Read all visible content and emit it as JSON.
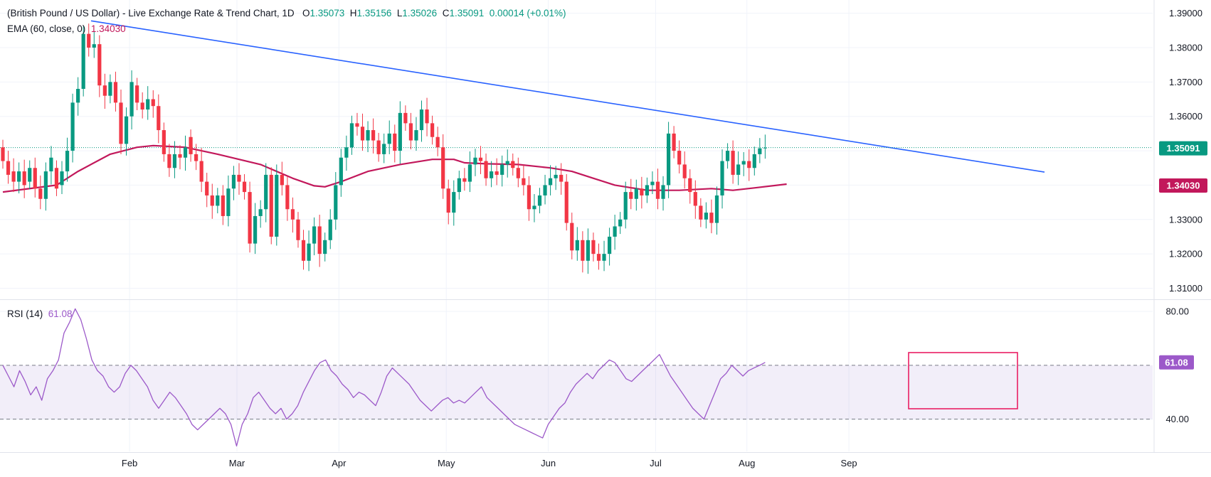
{
  "legend": {
    "symbol": "(British Pound / US Dollar) - Live Exchange Rate & Trend Chart, 1D",
    "o_label": "O",
    "o": "1.35073",
    "h_label": "H",
    "h": "1.35156",
    "l_label": "L",
    "l": "1.35026",
    "c_label": "C",
    "c": "1.35091",
    "change": "0.00014 (+0.01%)",
    "ema_label": "EMA (60, close, 0)",
    "ema_value": "1.34030",
    "rsi_label": "RSI (14)",
    "rsi_value": "61.08"
  },
  "price_tag": "1.35091",
  "ema_tag": "1.34030",
  "rsi_tag": "61.08",
  "colors": {
    "up": "#089981",
    "down": "#f23645",
    "ema": "#c2185b",
    "trendline": "#2962ff",
    "rsi": "#9c59c9",
    "highlight_box": "#e91e63"
  },
  "chart_data": [
    {
      "type": "candlestick",
      "title": "(British Pound / US Dollar) - Live Exchange Rate & Trend Chart, 1D",
      "x_ticks": [
        "Feb",
        "Mar",
        "Apr",
        "May",
        "Jun",
        "Jul",
        "Aug",
        "Sep"
      ],
      "y_ticks": [
        "1.31000",
        "1.32000",
        "1.33000",
        "1.34000",
        "1.35000",
        "1.36000",
        "1.37000",
        "1.38000",
        "1.39000"
      ],
      "ylim": [
        1.307,
        1.3922
      ],
      "candles": [
        [
          1.351,
          1.347
        ],
        [
          1.347,
          1.343
        ],
        [
          1.344,
          1.341
        ],
        [
          1.341,
          1.344
        ],
        [
          1.344,
          1.34
        ],
        [
          1.341,
          1.345
        ],
        [
          1.345,
          1.339
        ],
        [
          1.339,
          1.336
        ],
        [
          1.336,
          1.344
        ],
        [
          1.344,
          1.348
        ],
        [
          1.345,
          1.339
        ],
        [
          1.34,
          1.344
        ],
        [
          1.344,
          1.35
        ],
        [
          1.35,
          1.364
        ],
        [
          1.364,
          1.368
        ],
        [
          1.368,
          1.384
        ],
        [
          1.384,
          1.38
        ],
        [
          1.38,
          1.381
        ],
        [
          1.381,
          1.369
        ],
        [
          1.369,
          1.366
        ],
        [
          1.366,
          1.37
        ],
        [
          1.37,
          1.364
        ],
        [
          1.364,
          1.352
        ],
        [
          1.352,
          1.36
        ],
        [
          1.36,
          1.37
        ],
        [
          1.369,
          1.364
        ],
        [
          1.364,
          1.362
        ],
        [
          1.362,
          1.365
        ],
        [
          1.365,
          1.363
        ],
        [
          1.363,
          1.356
        ],
        [
          1.356,
          1.349
        ],
        [
          1.349,
          1.345
        ],
        [
          1.345,
          1.349
        ],
        [
          1.349,
          1.348
        ],
        [
          1.348,
          1.351
        ],
        [
          1.354,
          1.349
        ],
        [
          1.349,
          1.347
        ],
        [
          1.347,
          1.341
        ],
        [
          1.341,
          1.337
        ],
        [
          1.337,
          1.334
        ],
        [
          1.334,
          1.337
        ],
        [
          1.337,
          1.331
        ],
        [
          1.331,
          1.339
        ],
        [
          1.339,
          1.343
        ],
        [
          1.343,
          1.341
        ],
        [
          1.341,
          1.338
        ],
        [
          1.338,
          1.323
        ],
        [
          1.323,
          1.331
        ],
        [
          1.331,
          1.333
        ],
        [
          1.333,
          1.343
        ],
        [
          1.343,
          1.325
        ],
        [
          1.325,
          1.343
        ],
        [
          1.343,
          1.34
        ],
        [
          1.34,
          1.333
        ],
        [
          1.333,
          1.33
        ],
        [
          1.33,
          1.324
        ],
        [
          1.324,
          1.318
        ],
        [
          1.318,
          1.323
        ],
        [
          1.323,
          1.328
        ],
        [
          1.328,
          1.32
        ],
        [
          1.32,
          1.324
        ],
        [
          1.324,
          1.33
        ],
        [
          1.33,
          1.34
        ],
        [
          1.34,
          1.348
        ],
        [
          1.348,
          1.351
        ],
        [
          1.351,
          1.358
        ],
        [
          1.358,
          1.357
        ],
        [
          1.357,
          1.353
        ],
        [
          1.353,
          1.356
        ],
        [
          1.356,
          1.353
        ],
        [
          1.353,
          1.349
        ],
        [
          1.349,
          1.352
        ],
        [
          1.352,
          1.355
        ],
        [
          1.355,
          1.35
        ],
        [
          1.35,
          1.361
        ],
        [
          1.361,
          1.358
        ],
        [
          1.358,
          1.353
        ],
        [
          1.353,
          1.356
        ],
        [
          1.356,
          1.362
        ],
        [
          1.362,
          1.358
        ],
        [
          1.358,
          1.354
        ],
        [
          1.354,
          1.351
        ],
        [
          1.351,
          1.339
        ],
        [
          1.339,
          1.332
        ],
        [
          1.332,
          1.338
        ],
        [
          1.338,
          1.342
        ],
        [
          1.342,
          1.341
        ],
        [
          1.341,
          1.346
        ],
        [
          1.346,
          1.348
        ],
        [
          1.348,
          1.347
        ],
        [
          1.347,
          1.342
        ],
        [
          1.342,
          1.344
        ],
        [
          1.344,
          1.343
        ],
        [
          1.343,
          1.346
        ],
        [
          1.346,
          1.347
        ],
        [
          1.347,
          1.345
        ],
        [
          1.345,
          1.342
        ],
        [
          1.342,
          1.34
        ],
        [
          1.34,
          1.333
        ],
        [
          1.333,
          1.334
        ],
        [
          1.334,
          1.337
        ],
        [
          1.337,
          1.34
        ],
        [
          1.34,
          1.342
        ],
        [
          1.342,
          1.343
        ],
        [
          1.343,
          1.341
        ],
        [
          1.341,
          1.329
        ],
        [
          1.329,
          1.321
        ],
        [
          1.321,
          1.324
        ],
        [
          1.324,
          1.318
        ],
        [
          1.318,
          1.324
        ],
        [
          1.324,
          1.32
        ],
        [
          1.32,
          1.318
        ],
        [
          1.318,
          1.32
        ],
        [
          1.32,
          1.325
        ],
        [
          1.325,
          1.328
        ],
        [
          1.328,
          1.33
        ],
        [
          1.33,
          1.338
        ],
        [
          1.338,
          1.336
        ],
        [
          1.336,
          1.339
        ],
        [
          1.339,
          1.337
        ],
        [
          1.337,
          1.34
        ],
        [
          1.34,
          1.341
        ],
        [
          1.341,
          1.336
        ],
        [
          1.336,
          1.34
        ],
        [
          1.34,
          1.355
        ],
        [
          1.355,
          1.35
        ],
        [
          1.35,
          1.346
        ],
        [
          1.346,
          1.342
        ],
        [
          1.342,
          1.338
        ],
        [
          1.338,
          1.334
        ],
        [
          1.334,
          1.33
        ],
        [
          1.33,
          1.332
        ],
        [
          1.332,
          1.329
        ],
        [
          1.329,
          1.337
        ],
        [
          1.337,
          1.347
        ],
        [
          1.347,
          1.35
        ],
        [
          1.35,
          1.343
        ],
        [
          1.343,
          1.346
        ],
        [
          1.346,
          1.347
        ],
        [
          1.347,
          1.345
        ],
        [
          1.345,
          1.349
        ],
        [
          1.349,
          1.3507
        ],
        [
          1.3507,
          1.3509
        ]
      ],
      "ema_60": [
        [
          0,
          1.338
        ],
        [
          10,
          1.34
        ],
        [
          14,
          1.344
        ],
        [
          20,
          1.349
        ],
        [
          25,
          1.351
        ],
        [
          28,
          1.3515
        ],
        [
          34,
          1.351
        ],
        [
          40,
          1.349
        ],
        [
          48,
          1.346
        ],
        [
          54,
          1.342
        ],
        [
          58,
          1.3398
        ],
        [
          60,
          1.3395
        ],
        [
          63,
          1.341
        ],
        [
          68,
          1.344
        ],
        [
          74,
          1.346
        ],
        [
          80,
          1.3475
        ],
        [
          84,
          1.3475
        ],
        [
          86,
          1.3465
        ],
        [
          90,
          1.3462
        ],
        [
          96,
          1.346
        ],
        [
          102,
          1.345
        ],
        [
          106,
          1.344
        ],
        [
          110,
          1.342
        ],
        [
          114,
          1.34
        ],
        [
          120,
          1.3385
        ],
        [
          126,
          1.3385
        ],
        [
          132,
          1.339
        ],
        [
          136,
          1.3385
        ],
        [
          140,
          1.3392
        ],
        [
          146,
          1.3403
        ]
      ],
      "trendline": [
        [
          1.3878,
          0
        ],
        [
          1.3438,
          1
        ]
      ],
      "last_close": "1.35091",
      "ema_last": "1.34030"
    },
    {
      "type": "line",
      "title": "RSI (14)",
      "y_ticks": [
        "40.00",
        "80.00"
      ],
      "ylim": [
        28,
        84
      ],
      "band": [
        40,
        60
      ],
      "values": [
        60,
        56,
        52,
        58,
        54,
        49,
        52,
        47,
        55,
        58,
        62,
        72,
        76,
        81,
        77,
        70,
        62,
        58,
        56,
        52,
        50,
        52,
        57,
        60,
        58,
        55,
        52,
        47,
        44,
        47,
        50,
        48,
        45,
        42,
        38,
        36,
        38,
        40,
        42,
        44,
        42,
        38,
        30,
        38,
        42,
        48,
        50,
        47,
        44,
        42,
        44,
        40,
        42,
        45,
        50,
        54,
        58,
        61,
        62,
        58,
        56,
        53,
        51,
        48,
        50,
        49,
        47,
        45,
        50,
        56,
        59,
        57,
        55,
        53,
        50,
        47,
        45,
        43,
        45,
        47,
        48,
        46,
        47,
        46,
        48,
        50,
        52,
        48,
        46,
        44,
        42,
        40,
        38,
        37,
        36,
        35,
        34,
        33,
        38,
        41,
        44,
        46,
        50,
        53,
        55,
        57,
        55,
        58,
        60,
        62,
        61,
        58,
        55,
        54,
        56,
        58,
        60,
        62,
        64,
        60,
        56,
        53,
        50,
        47,
        44,
        42,
        40,
        45,
        50,
        55,
        57,
        60,
        58,
        56,
        58,
        59,
        60,
        61.08
      ],
      "last_value": "61.08"
    }
  ]
}
